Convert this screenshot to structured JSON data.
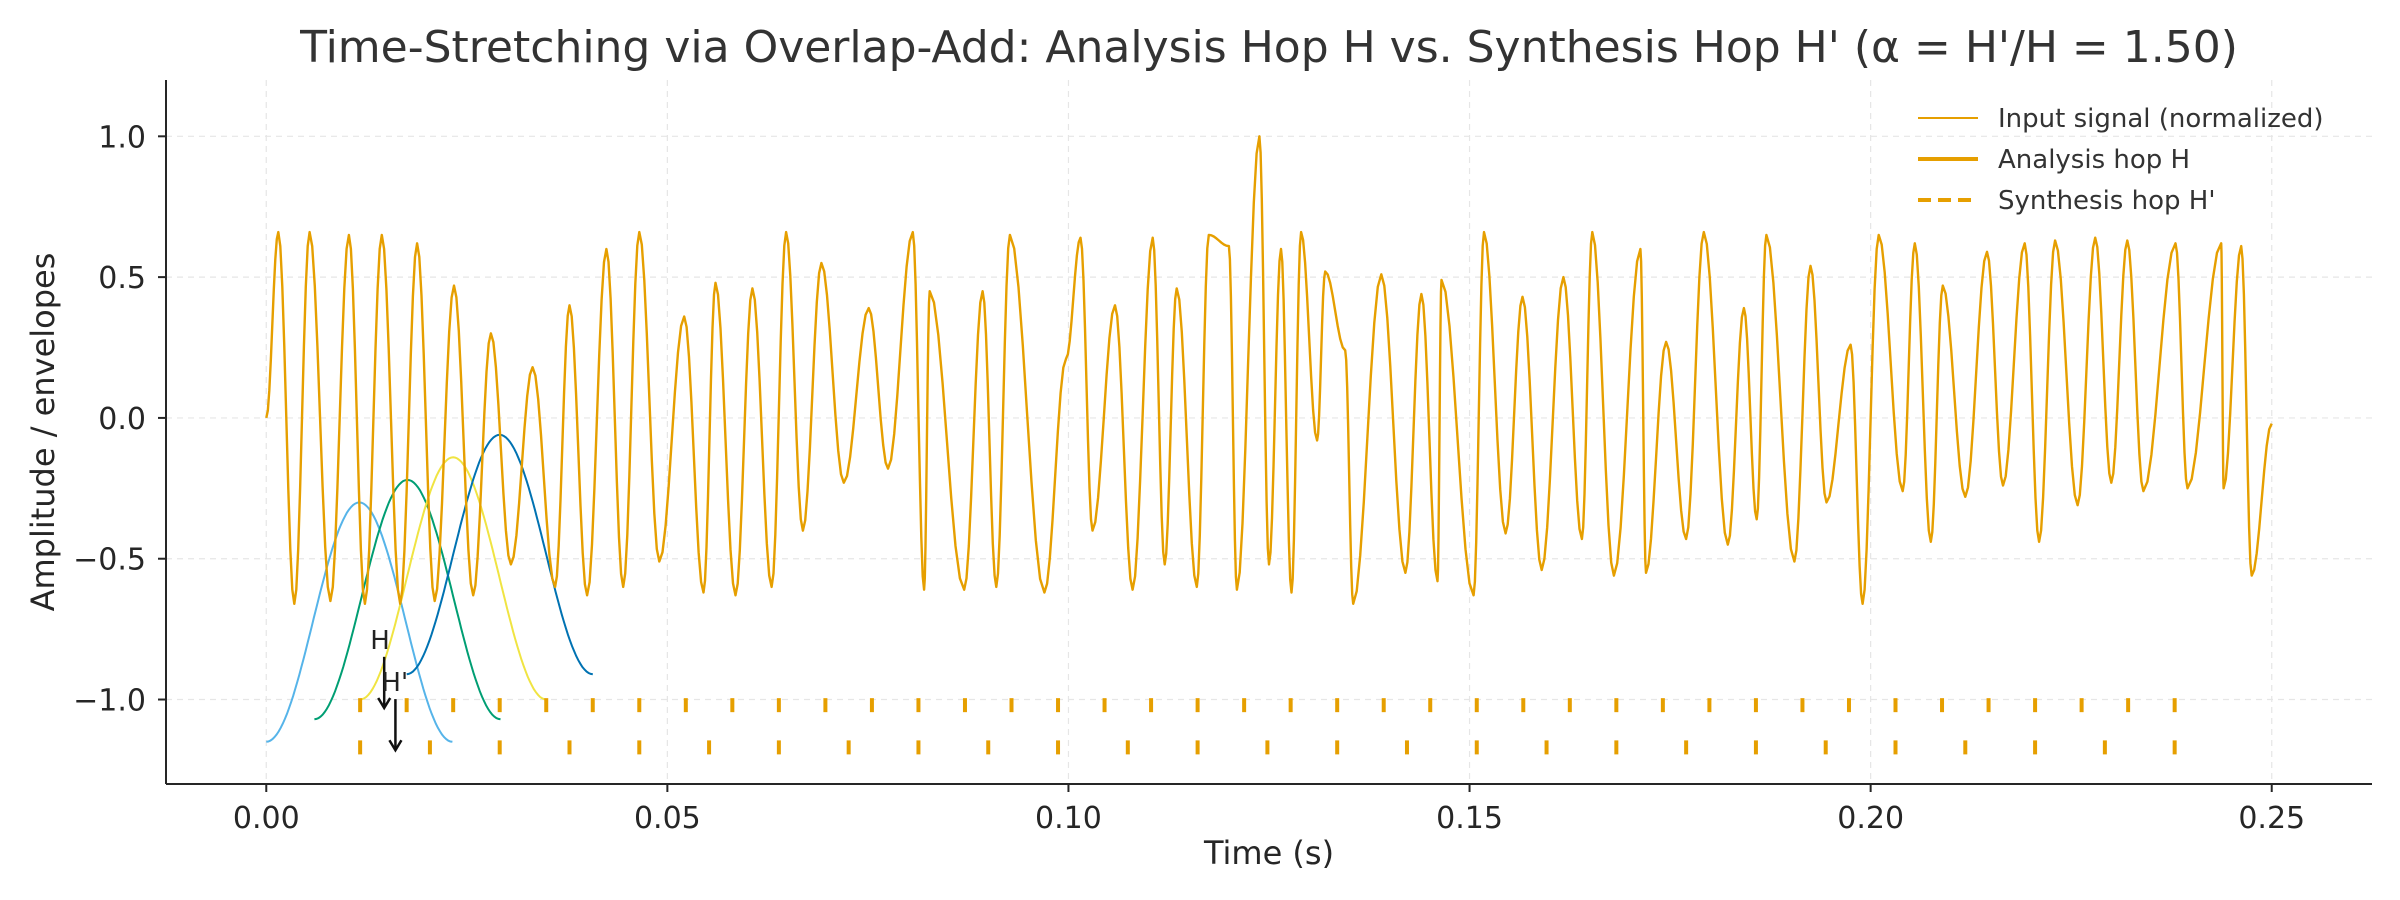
{
  "chart_data": {
    "type": "line",
    "title": "Time-Stretching via Overlap-Add: Analysis Hop H vs. Synthesis Hop H' (α = H'/H = 1.50)",
    "xlabel": "Time (s)",
    "ylabel": "Amplitude / envelopes",
    "xlim": [
      -0.0125,
      0.2625
    ],
    "ylim": [
      -1.3,
      1.2
    ],
    "xticks": [
      0.0,
      0.05,
      0.1,
      0.15,
      0.2,
      0.25
    ],
    "xtick_labels": [
      "0.00",
      "0.05",
      "0.10",
      "0.15",
      "0.20",
      "0.25"
    ],
    "yticks": [
      1.0,
      0.5,
      0.0,
      -0.5,
      -1.0
    ],
    "ytick_labels": [
      "1.0",
      "0.5",
      "0.0",
      "−0.5",
      "−1.0"
    ],
    "grid": true,
    "legend_position": "top-right",
    "legend": [
      {
        "label": "Input signal (normalized)",
        "style": "thin-solid"
      },
      {
        "label": "Analysis hop H",
        "style": "thick-solid"
      },
      {
        "label": "Synthesis hop H'",
        "style": "dashed"
      }
    ],
    "signal": {
      "name": "Input signal (normalized)",
      "color": "#E69F00",
      "x_range": [
        0.0,
        0.25
      ],
      "peaks": [
        [
          0.0015,
          0.66
        ],
        [
          0.0054,
          0.66
        ],
        [
          0.0103,
          0.65
        ],
        [
          0.0144,
          0.65
        ],
        [
          0.0188,
          0.62
        ],
        [
          0.0234,
          0.47
        ],
        [
          0.028,
          0.3
        ],
        [
          0.0332,
          0.18
        ],
        [
          0.0378,
          0.4
        ],
        [
          0.0424,
          0.6
        ],
        [
          0.0465,
          0.66
        ],
        [
          0.0521,
          0.36
        ],
        [
          0.056,
          0.48
        ],
        [
          0.0606,
          0.46
        ],
        [
          0.0648,
          0.66
        ],
        [
          0.0692,
          0.55
        ],
        [
          0.0751,
          0.39
        ],
        [
          0.0806,
          0.66
        ],
        [
          0.0827,
          0.45
        ],
        [
          0.0893,
          0.45
        ],
        [
          0.0927,
          0.65
        ],
        [
          0.0997,
          0.21
        ],
        [
          0.1015,
          0.64
        ],
        [
          0.1058,
          0.4
        ],
        [
          0.1105,
          0.64
        ],
        [
          0.1135,
          0.46
        ],
        [
          0.1175,
          0.65
        ],
        [
          0.12,
          0.61
        ],
        [
          0.1238,
          1.0
        ],
        [
          0.1265,
          0.6
        ],
        [
          0.129,
          0.66
        ],
        [
          0.132,
          0.52
        ],
        [
          0.1345,
          0.24
        ],
        [
          0.139,
          0.51
        ],
        [
          0.144,
          0.44
        ],
        [
          0.1465,
          0.49
        ],
        [
          0.1518,
          0.66
        ],
        [
          0.1566,
          0.43
        ],
        [
          0.1617,
          0.5
        ],
        [
          0.1653,
          0.66
        ],
        [
          0.1713,
          0.6
        ],
        [
          0.1745,
          0.27
        ],
        [
          0.1792,
          0.66
        ],
        [
          0.1842,
          0.39
        ],
        [
          0.187,
          0.65
        ],
        [
          0.1925,
          0.54
        ],
        [
          0.1975,
          0.26
        ],
        [
          0.201,
          0.65
        ],
        [
          0.2055,
          0.62
        ],
        [
          0.209,
          0.47
        ],
        [
          0.2145,
          0.59
        ],
        [
          0.2192,
          0.62
        ],
        [
          0.223,
          0.63
        ],
        [
          0.228,
          0.64
        ],
        [
          0.232,
          0.63
        ],
        [
          0.238,
          0.62
        ],
        [
          0.2437,
          0.62
        ],
        [
          0.2462,
          0.61
        ]
      ],
      "troughs": [
        [
          0.0035,
          -0.66
        ],
        [
          0.008,
          -0.65
        ],
        [
          0.0123,
          -0.66
        ],
        [
          0.0167,
          -0.66
        ],
        [
          0.021,
          -0.65
        ],
        [
          0.0258,
          -0.63
        ],
        [
          0.0305,
          -0.52
        ],
        [
          0.036,
          -0.6
        ],
        [
          0.04,
          -0.63
        ],
        [
          0.0445,
          -0.6
        ],
        [
          0.049,
          -0.51
        ],
        [
          0.0545,
          -0.62
        ],
        [
          0.0585,
          -0.63
        ],
        [
          0.063,
          -0.6
        ],
        [
          0.0669,
          -0.4
        ],
        [
          0.072,
          -0.23
        ],
        [
          0.0775,
          -0.18
        ],
        [
          0.082,
          -0.61
        ],
        [
          0.087,
          -0.61
        ],
        [
          0.091,
          -0.6
        ],
        [
          0.097,
          -0.62
        ],
        [
          0.103,
          -0.4
        ],
        [
          0.108,
          -0.61
        ],
        [
          0.112,
          -0.52
        ],
        [
          0.116,
          -0.6
        ],
        [
          0.121,
          -0.61
        ],
        [
          0.125,
          -0.52
        ],
        [
          0.1278,
          -0.62
        ],
        [
          0.131,
          -0.08
        ],
        [
          0.1355,
          -0.66
        ],
        [
          0.142,
          -0.55
        ],
        [
          0.146,
          -0.58
        ],
        [
          0.1505,
          -0.63
        ],
        [
          0.1545,
          -0.41
        ],
        [
          0.159,
          -0.54
        ],
        [
          0.164,
          -0.43
        ],
        [
          0.168,
          -0.56
        ],
        [
          0.172,
          -0.55
        ],
        [
          0.177,
          -0.43
        ],
        [
          0.1822,
          -0.45
        ],
        [
          0.1858,
          -0.36
        ],
        [
          0.1905,
          -0.51
        ],
        [
          0.1945,
          -0.3
        ],
        [
          0.199,
          -0.66
        ],
        [
          0.204,
          -0.26
        ],
        [
          0.2075,
          -0.44
        ],
        [
          0.2118,
          -0.28
        ],
        [
          0.2165,
          -0.24
        ],
        [
          0.221,
          -0.44
        ],
        [
          0.2258,
          -0.31
        ],
        [
          0.23,
          -0.23
        ],
        [
          0.234,
          -0.26
        ],
        [
          0.2395,
          -0.25
        ],
        [
          0.244,
          -0.25
        ],
        [
          0.2475,
          -0.56
        ]
      ]
    },
    "windows": [
      {
        "color": "#56B4E9",
        "x_range": [
          0.0,
          0.0232
        ],
        "peak_x": 0.0117,
        "base_y": -1.15,
        "peak_y": -0.3
      },
      {
        "color": "#009E73",
        "x_range": [
          0.006,
          0.0292
        ],
        "peak_x": 0.0175,
        "base_y": -1.07,
        "peak_y": -0.22
      },
      {
        "color": "#F0E442",
        "x_range": [
          0.0117,
          0.0349
        ],
        "peak_x": 0.0233,
        "base_y": -1.0,
        "peak_y": -0.14
      },
      {
        "color": "#0072B2",
        "x_range": [
          0.0175,
          0.0407
        ],
        "peak_x": 0.0291,
        "base_y": -0.91,
        "peak_y": -0.06
      }
    ],
    "analysis_hops": {
      "name": "Analysis hop H",
      "color": "#E69F00",
      "y_center": -1.02,
      "x": [
        0.0117,
        0.0175,
        0.0233,
        0.0291,
        0.0349,
        0.0407,
        0.0465,
        0.0523,
        0.0581,
        0.0639,
        0.0697,
        0.0755,
        0.0813,
        0.0871,
        0.0929,
        0.0987,
        0.1045,
        0.1103,
        0.1161,
        0.1219,
        0.1277,
        0.1335,
        0.1393,
        0.1451,
        0.1509,
        0.1567,
        0.1625,
        0.1683,
        0.1741,
        0.1799,
        0.1857,
        0.1915,
        0.1973,
        0.2031,
        0.2089,
        0.2147,
        0.2205,
        0.2263,
        0.2321,
        0.2379
      ]
    },
    "synthesis_hops": {
      "name": "Synthesis hop H'",
      "color": "#E69F00",
      "y_center": -1.17,
      "x": [
        0.0117,
        0.0204,
        0.0291,
        0.0378,
        0.0465,
        0.0552,
        0.0639,
        0.0726,
        0.0813,
        0.09,
        0.0987,
        0.1074,
        0.1161,
        0.1248,
        0.1335,
        0.1422,
        0.1509,
        0.1596,
        0.1683,
        0.177,
        0.1857,
        0.1944,
        0.2031,
        0.2118,
        0.2205,
        0.2292,
        0.2379
      ]
    },
    "annotations": [
      {
        "text": "H",
        "x": 0.0147,
        "y": -0.82,
        "arrow_to": [
          0.0147,
          -1.03
        ]
      },
      {
        "text": "H'",
        "x": 0.0161,
        "y": -0.97,
        "arrow_to": [
          0.0161,
          -1.18
        ]
      }
    ]
  }
}
